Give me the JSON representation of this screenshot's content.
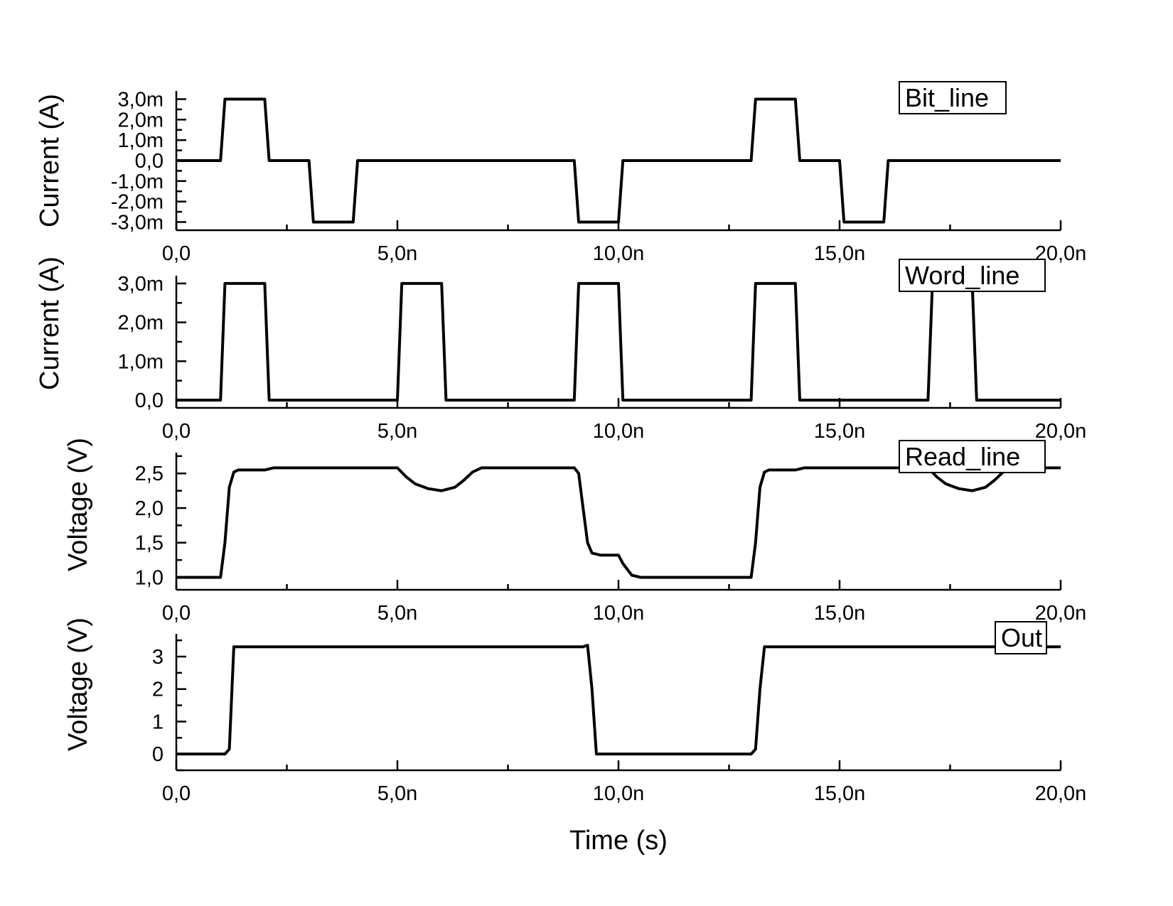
{
  "chart_data": [
    {
      "type": "line",
      "legend": "Bit_line",
      "ylabel": "Current (A)",
      "xlim": [
        0,
        20
      ],
      "ylim": [
        -3.4,
        3.4
      ],
      "x_ticks": [
        {
          "v": 0,
          "label": "0,0"
        },
        {
          "v": 5,
          "label": "5,0n"
        },
        {
          "v": 10,
          "label": "10,0n"
        },
        {
          "v": 15,
          "label": "15,0n"
        },
        {
          "v": 20,
          "label": "20,0n"
        }
      ],
      "y_ticks": [
        {
          "v": 3,
          "label": "3,0m"
        },
        {
          "v": 2,
          "label": "2,0m"
        },
        {
          "v": 1,
          "label": "1,0m"
        },
        {
          "v": 0,
          "label": "0,0"
        },
        {
          "v": -1,
          "label": "-1,0m"
        },
        {
          "v": -2,
          "label": "-2,0m"
        },
        {
          "v": -3,
          "label": "-3,0m"
        }
      ],
      "series": [
        {
          "x": [
            0,
            1,
            1.1,
            2,
            2.1,
            3,
            3.1,
            4,
            4.1,
            9,
            9.1,
            10,
            10.1,
            13,
            13.1,
            14,
            14.1,
            15,
            15.1,
            16,
            16.1,
            20
          ],
          "y": [
            0,
            0,
            3,
            3,
            0,
            0,
            -3,
            -3,
            0,
            0,
            -3,
            -3,
            0,
            0,
            3,
            3,
            0,
            0,
            -3,
            -3,
            0,
            0
          ]
        }
      ]
    },
    {
      "type": "line",
      "legend": "Word_line",
      "ylabel": "Current (A)",
      "xlim": [
        0,
        20
      ],
      "ylim": [
        -0.2,
        3.2
      ],
      "x_ticks": [
        {
          "v": 0,
          "label": "0,0"
        },
        {
          "v": 5,
          "label": "5,0n"
        },
        {
          "v": 10,
          "label": "10,0n"
        },
        {
          "v": 15,
          "label": "15,0n"
        },
        {
          "v": 20,
          "label": "20,0n"
        }
      ],
      "y_ticks": [
        {
          "v": 3,
          "label": "3,0m"
        },
        {
          "v": 2,
          "label": "2,0m"
        },
        {
          "v": 1,
          "label": "1,0m"
        },
        {
          "v": 0,
          "label": "0,0"
        }
      ],
      "series": [
        {
          "x": [
            0,
            1,
            1.1,
            2,
            2.1,
            5,
            5.1,
            6,
            6.1,
            9,
            9.1,
            10,
            10.1,
            13,
            13.1,
            14,
            14.1,
            17,
            17.1,
            18,
            18.1,
            20
          ],
          "y": [
            0,
            0,
            3,
            3,
            0,
            0,
            3,
            3,
            0,
            0,
            3,
            3,
            0,
            0,
            3,
            3,
            0,
            0,
            3,
            3,
            0,
            0
          ]
        }
      ]
    },
    {
      "type": "line",
      "legend": "Read_line",
      "ylabel": "Voltage (V)",
      "xlim": [
        0,
        20
      ],
      "ylim": [
        0.82,
        2.8
      ],
      "x_ticks": [
        {
          "v": 0,
          "label": "0,0"
        },
        {
          "v": 5,
          "label": "5,0n"
        },
        {
          "v": 10,
          "label": "10,0n"
        },
        {
          "v": 15,
          "label": "15,0n"
        },
        {
          "v": 20,
          "label": "20,0n"
        }
      ],
      "y_ticks": [
        {
          "v": 2.5,
          "label": "2,5"
        },
        {
          "v": 2.0,
          "label": "2,0"
        },
        {
          "v": 1.5,
          "label": "1,5"
        },
        {
          "v": 1.0,
          "label": "1,0"
        }
      ],
      "series": [
        {
          "x": [
            0,
            1,
            1.1,
            1.2,
            1.3,
            1.4,
            2,
            2.2,
            5,
            5.2,
            5.4,
            5.7,
            6,
            6.3,
            6.5,
            6.7,
            6.9,
            9,
            9.1,
            9.2,
            9.3,
            9.4,
            9.6,
            10,
            10.1,
            10.3,
            10.5,
            13,
            13.1,
            13.2,
            13.3,
            13.4,
            14,
            14.2,
            17,
            17.2,
            17.4,
            17.7,
            18,
            18.3,
            18.5,
            18.7,
            18.9,
            20
          ],
          "y": [
            1,
            1,
            1.5,
            2.3,
            2.52,
            2.55,
            2.55,
            2.58,
            2.58,
            2.45,
            2.35,
            2.28,
            2.25,
            2.3,
            2.4,
            2.52,
            2.58,
            2.58,
            2.5,
            2.0,
            1.5,
            1.35,
            1.32,
            1.32,
            1.2,
            1.03,
            1,
            1,
            1.5,
            2.3,
            2.52,
            2.55,
            2.55,
            2.58,
            2.58,
            2.45,
            2.35,
            2.28,
            2.25,
            2.3,
            2.4,
            2.52,
            2.58,
            2.58
          ]
        }
      ]
    },
    {
      "type": "line",
      "legend": "Out",
      "ylabel": "Voltage (V)",
      "xlabel": "Time (s)",
      "xlim": [
        0,
        20
      ],
      "ylim": [
        -0.5,
        3.7
      ],
      "x_ticks": [
        {
          "v": 0,
          "label": "0,0"
        },
        {
          "v": 5,
          "label": "5,0n"
        },
        {
          "v": 10,
          "label": "10,0n"
        },
        {
          "v": 15,
          "label": "15,0n"
        },
        {
          "v": 20,
          "label": "20,0n"
        }
      ],
      "y_ticks": [
        {
          "v": 3,
          "label": "3"
        },
        {
          "v": 2,
          "label": "2"
        },
        {
          "v": 1,
          "label": "1"
        },
        {
          "v": 0,
          "label": "0"
        }
      ],
      "series": [
        {
          "x": [
            0,
            1.1,
            1.2,
            1.3,
            9.2,
            9.3,
            9.4,
            9.5,
            13.0,
            13.1,
            13.2,
            13.3,
            20
          ],
          "y": [
            0,
            0,
            0.15,
            3.3,
            3.3,
            3.35,
            2.0,
            0,
            0,
            0.15,
            2.0,
            3.3,
            3.3
          ]
        }
      ]
    }
  ]
}
